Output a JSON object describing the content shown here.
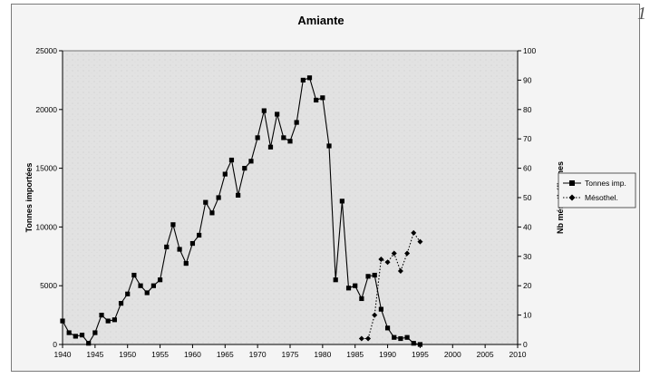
{
  "page_number": "1",
  "chart_data": {
    "type": "line",
    "title": "Amiante",
    "xlabel": "",
    "ylabel_left": "Tonnes importées",
    "ylabel_right": "Nb mésothéliomes",
    "xlim": [
      1940,
      2010
    ],
    "ylim_left": [
      0,
      25000
    ],
    "ylim_right": [
      0,
      100
    ],
    "x_ticks": [
      1940,
      1945,
      1950,
      1955,
      1960,
      1965,
      1970,
      1975,
      1980,
      1985,
      1990,
      1995,
      2000,
      2005,
      2010
    ],
    "y_left_ticks": [
      0,
      5000,
      10000,
      15000,
      20000,
      25000
    ],
    "y_right_ticks": [
      0,
      10,
      20,
      30,
      40,
      50,
      60,
      70,
      80,
      90,
      100
    ],
    "grid": false,
    "legend_position": "right",
    "series": [
      {
        "name": "Tonnes imp.",
        "axis": "left",
        "marker": "square",
        "line_style": "solid",
        "color": "#000000",
        "x": [
          1940,
          1941,
          1942,
          1943,
          1944,
          1945,
          1946,
          1947,
          1948,
          1949,
          1950,
          1951,
          1952,
          1953,
          1954,
          1955,
          1956,
          1957,
          1958,
          1959,
          1960,
          1961,
          1962,
          1963,
          1964,
          1965,
          1966,
          1967,
          1968,
          1969,
          1970,
          1971,
          1972,
          1973,
          1974,
          1975,
          1976,
          1977,
          1978,
          1979,
          1980,
          1981,
          1982,
          1983,
          1984,
          1985,
          1986,
          1987,
          1988,
          1989,
          1990,
          1991,
          1992,
          1993,
          1994,
          1995
        ],
        "y": [
          2000,
          1000,
          700,
          800,
          100,
          1000,
          2500,
          2000,
          2100,
          3500,
          4300,
          5900,
          5000,
          4400,
          5000,
          5500,
          8300,
          10200,
          8100,
          6900,
          8600,
          9300,
          12100,
          11200,
          12500,
          14500,
          15700,
          12700,
          15000,
          15600,
          17600,
          19900,
          16800,
          19600,
          17600,
          17300,
          18900,
          22500,
          22700,
          20800,
          21000,
          16900,
          5500,
          12200,
          4800,
          5000,
          3900,
          5800,
          5900,
          3000,
          1400,
          600,
          500,
          600,
          100,
          0
        ]
      },
      {
        "name": "Mésothel.",
        "axis": "right",
        "marker": "diamond",
        "line_style": "dotted",
        "color": "#000000",
        "x": [
          1986,
          1987,
          1988,
          1989,
          1990,
          1991,
          1992,
          1993,
          1994,
          1995
        ],
        "y": [
          2,
          2,
          10,
          29,
          28,
          31,
          25,
          31,
          38,
          35
        ]
      }
    ]
  }
}
